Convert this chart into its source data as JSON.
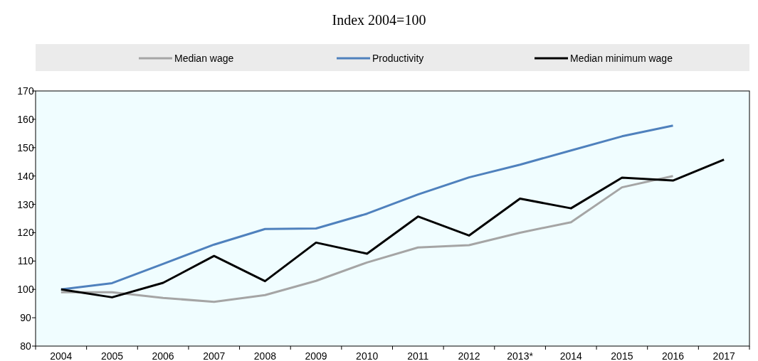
{
  "chart_data": {
    "type": "line",
    "title": "Index 2004=100",
    "categories": [
      "2004",
      "2005",
      "2006",
      "2007",
      "2008",
      "2009",
      "2010",
      "2011",
      "2012",
      "2013*",
      "2014",
      "2015",
      "2016",
      "2017"
    ],
    "series": [
      {
        "name": "Median wage",
        "color": "#a5a5a5",
        "values": [
          99,
          99,
          97,
          95.6,
          98,
          103,
          109.5,
          114.8,
          115.6,
          120,
          123.7,
          136,
          140,
          null
        ]
      },
      {
        "name": "Productivity",
        "color": "#4f81bd",
        "values": [
          100,
          102.2,
          109,
          115.8,
          121.3,
          121.5,
          126.7,
          133.5,
          139.5,
          144,
          149,
          154,
          157.8,
          null
        ]
      },
      {
        "name": "Median minimum wage",
        "color": "#000000",
        "values": [
          100,
          97.2,
          102.3,
          111.8,
          102.9,
          116.5,
          112.6,
          125.7,
          119,
          132,
          128.6,
          139.4,
          138.4,
          145.8
        ]
      }
    ],
    "ylim": [
      80,
      170
    ],
    "yticks": [
      80,
      90,
      100,
      110,
      120,
      130,
      140,
      150,
      160,
      170
    ],
    "legend": "top",
    "grid": false,
    "marker": "none",
    "line_style": "solid"
  }
}
